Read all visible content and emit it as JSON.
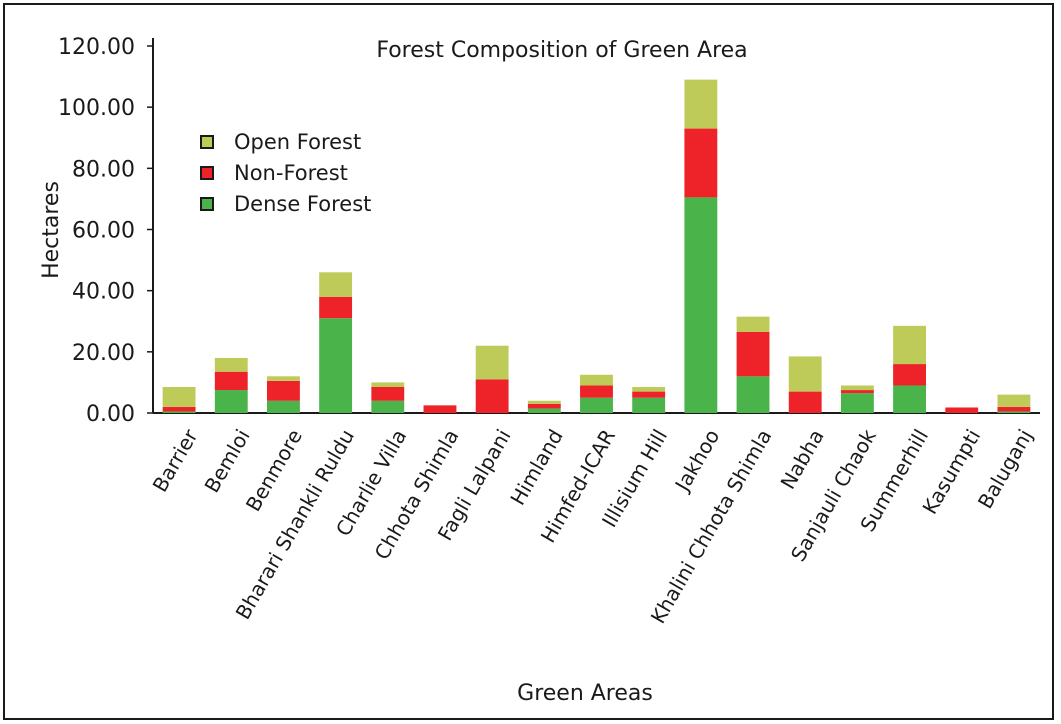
{
  "chart_data": {
    "type": "bar",
    "stacked": true,
    "title": "Forest Composition of Green Area",
    "xlabel": "Green Areas",
    "ylabel": "Hectares",
    "ylim": [
      0,
      120
    ],
    "yticks": [
      "0.00",
      "20.00",
      "40.00",
      "60.00",
      "80.00",
      "100.00",
      "120.00"
    ],
    "grid": false,
    "legend_position": "top-left",
    "categories": [
      "Barrier",
      "Bemloi",
      "Benmore",
      "Bharari Shankli Ruldu",
      "Charlie Villa",
      "Chhota Shimla",
      "Fagli Lalpani",
      "Himland",
      "Himfed-ICAR",
      "Illisium Hill",
      "Jakhoo",
      "Khalini Chhota Shimla",
      "Nabha",
      "Sanjauli Chaok",
      "Summerhill",
      "Kasumpti",
      "Baluganj"
    ],
    "series": [
      {
        "name": "Dense Forest",
        "color": "#4ab34a",
        "values": [
          0.5,
          7.5,
          4,
          31,
          4,
          0,
          0,
          1.5,
          5,
          5,
          70.5,
          12,
          0,
          6.5,
          9,
          0,
          0.5
        ]
      },
      {
        "name": "Non-Forest",
        "color": "#ee2229",
        "values": [
          1.5,
          6,
          6.5,
          7,
          4.5,
          2.5,
          11,
          1.5,
          4,
          2,
          22.5,
          14.5,
          7,
          1,
          7,
          1.8,
          1.5
        ]
      },
      {
        "name": "Open Forest",
        "color": "#bfcb58",
        "values": [
          6.5,
          4.5,
          1.5,
          8,
          1.5,
          0,
          11,
          1,
          3.5,
          1.5,
          16,
          5,
          11.5,
          1.5,
          12.5,
          0,
          4
        ]
      }
    ],
    "legend_order": [
      "Open Forest",
      "Non-Forest",
      "Dense Forest"
    ]
  }
}
